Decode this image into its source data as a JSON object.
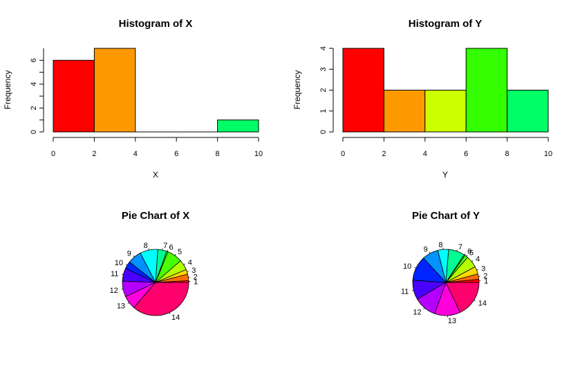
{
  "chart_data": [
    {
      "type": "bar",
      "title": "Histogram of X",
      "xlabel": "X",
      "ylabel": "Frequency",
      "bins": [
        [
          0,
          2
        ],
        [
          2,
          4
        ],
        [
          4,
          6
        ],
        [
          6,
          8
        ],
        [
          8,
          10
        ]
      ],
      "values": [
        6,
        7,
        0,
        0,
        1
      ],
      "colors": [
        "#FF0000",
        "#FF9900",
        "#CCFF00",
        "#33FF00",
        "#00FF66"
      ],
      "xticks": [
        0,
        2,
        4,
        6,
        8,
        10
      ],
      "yticks": [
        0,
        2,
        4,
        6
      ],
      "xlim": [
        0,
        10
      ],
      "ylim": [
        0,
        7
      ]
    },
    {
      "type": "bar",
      "title": "Histogram of Y",
      "xlabel": "Y",
      "ylabel": "Frequency",
      "bins": [
        [
          0,
          2
        ],
        [
          2,
          4
        ],
        [
          4,
          6
        ],
        [
          6,
          8
        ],
        [
          8,
          10
        ]
      ],
      "values": [
        4,
        2,
        2,
        4,
        2
      ],
      "colors": [
        "#FF0000",
        "#FF9900",
        "#CCFF00",
        "#33FF00",
        "#00FF66"
      ],
      "xticks": [
        0,
        2,
        4,
        6,
        8,
        10
      ],
      "yticks": [
        0,
        1,
        2,
        3,
        4
      ],
      "xlim": [
        0,
        10
      ],
      "ylim": [
        0,
        4
      ]
    },
    {
      "type": "pie",
      "title": "Pie Chart of X",
      "labels": [
        "1",
        "2",
        "3",
        "4",
        "5",
        "6",
        "7",
        "8",
        "9",
        "10",
        "11",
        "12",
        "13",
        "14"
      ],
      "values": [
        0.9,
        3.2,
        2.3,
        5.0,
        7.5,
        0.7,
        4.3,
        8.7,
        6.8,
        3.6,
        6.4,
        7.6,
        6.7,
        36.3
      ],
      "colors": [
        "#FF0000",
        "#FF6D00",
        "#FFDB00",
        "#B6FF00",
        "#49FF00",
        "#00FF24",
        "#00FF92",
        "#00FFFF",
        "#0092FF",
        "#0024FF",
        "#4900FF",
        "#B600FF",
        "#FF00DB",
        "#FF006D"
      ]
    },
    {
      "type": "pie",
      "title": "Pie Chart of Y",
      "labels": [
        "1",
        "2",
        "3",
        "4",
        "5",
        "6",
        "7",
        "8",
        "9",
        "10",
        "11",
        "12",
        "13",
        "14"
      ],
      "values": [
        1.5,
        2.5,
        3.5,
        5.5,
        1.5,
        0.5,
        7.5,
        5.0,
        7.5,
        11.5,
        9.0,
        10.5,
        12.0,
        17.0
      ],
      "colors": [
        "#FF0000",
        "#FF6D00",
        "#FFDB00",
        "#B6FF00",
        "#49FF00",
        "#00FF24",
        "#00FF92",
        "#00FFFF",
        "#0092FF",
        "#0024FF",
        "#4900FF",
        "#B600FF",
        "#FF00DB",
        "#FF006D"
      ]
    }
  ]
}
